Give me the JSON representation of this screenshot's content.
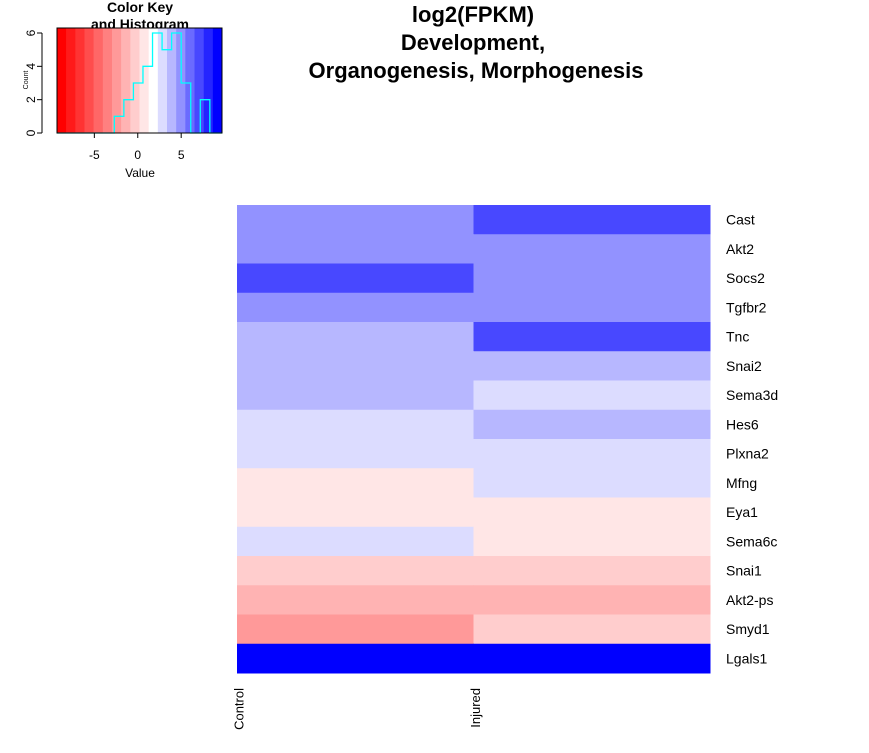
{
  "chart_data": {
    "type": "heatmap",
    "title_lines": [
      "log2(FPKM)",
      "Development,",
      "Organogenesis, Morphogenesis"
    ],
    "columns": [
      "Control",
      "Injured"
    ],
    "rows": [
      "Cast",
      "Akt2",
      "Socs2",
      "Tgfbr2",
      "Tnc",
      "Snai2",
      "Sema3d",
      "Hes6",
      "Plxna2",
      "Mfng",
      "Eya1",
      "Sema6c",
      "Snai1",
      "Akt2-ps",
      "Smyd1",
      "Lgals1"
    ],
    "values": [
      [
        5,
        7
      ],
      [
        5,
        5
      ],
      [
        7,
        5
      ],
      [
        5,
        5
      ],
      [
        4,
        7
      ],
      [
        4,
        4
      ],
      [
        4,
        3
      ],
      [
        3,
        4
      ],
      [
        3,
        3
      ],
      [
        1,
        3
      ],
      [
        1,
        1
      ],
      [
        3,
        1
      ],
      [
        0,
        0
      ],
      [
        -1,
        -1
      ],
      [
        -2,
        0
      ],
      [
        9,
        9
      ]
    ],
    "color_scale": {
      "colors": [
        "#ff0000",
        "#ff1a1a",
        "#ff3333",
        "#ff4d4d",
        "#ff6767",
        "#ff8080",
        "#ff9999",
        "#ffb3b3",
        "#ffcdcd",
        "#ffe6e6",
        "#ffffff",
        "#dcdcff",
        "#b7b7ff",
        "#9292ff",
        "#6b6bff",
        "#4848ff",
        "#2424ff",
        "#0000ff"
      ],
      "breaks_min": -9.3,
      "breaks_max": 9.7
    },
    "color_key": {
      "title_lines": [
        "Color Key",
        "and Histogram"
      ],
      "xlabel": "Value",
      "ylabel": "Count",
      "x_ticks": [
        "-5",
        "0",
        "5"
      ],
      "x_tick_values": [
        -5,
        0,
        5
      ],
      "y_ticks": [
        "0",
        "2",
        "4",
        "6"
      ],
      "y_tick_values": [
        0,
        2,
        4,
        6
      ],
      "histogram_color": "#00ffff",
      "histogram": {
        "bin_edges": [
          -9.3,
          -8.2,
          -7.1,
          -6.0,
          -4.9,
          -3.8,
          -2.7,
          -1.6,
          -0.5,
          0.6,
          1.7,
          2.8,
          3.9,
          5.0,
          6.1,
          7.2,
          8.3,
          9.7
        ],
        "counts": [
          0,
          0,
          0,
          0,
          0,
          0,
          1,
          2,
          3,
          4,
          6,
          5,
          6,
          3,
          0,
          2,
          0
        ]
      }
    }
  }
}
